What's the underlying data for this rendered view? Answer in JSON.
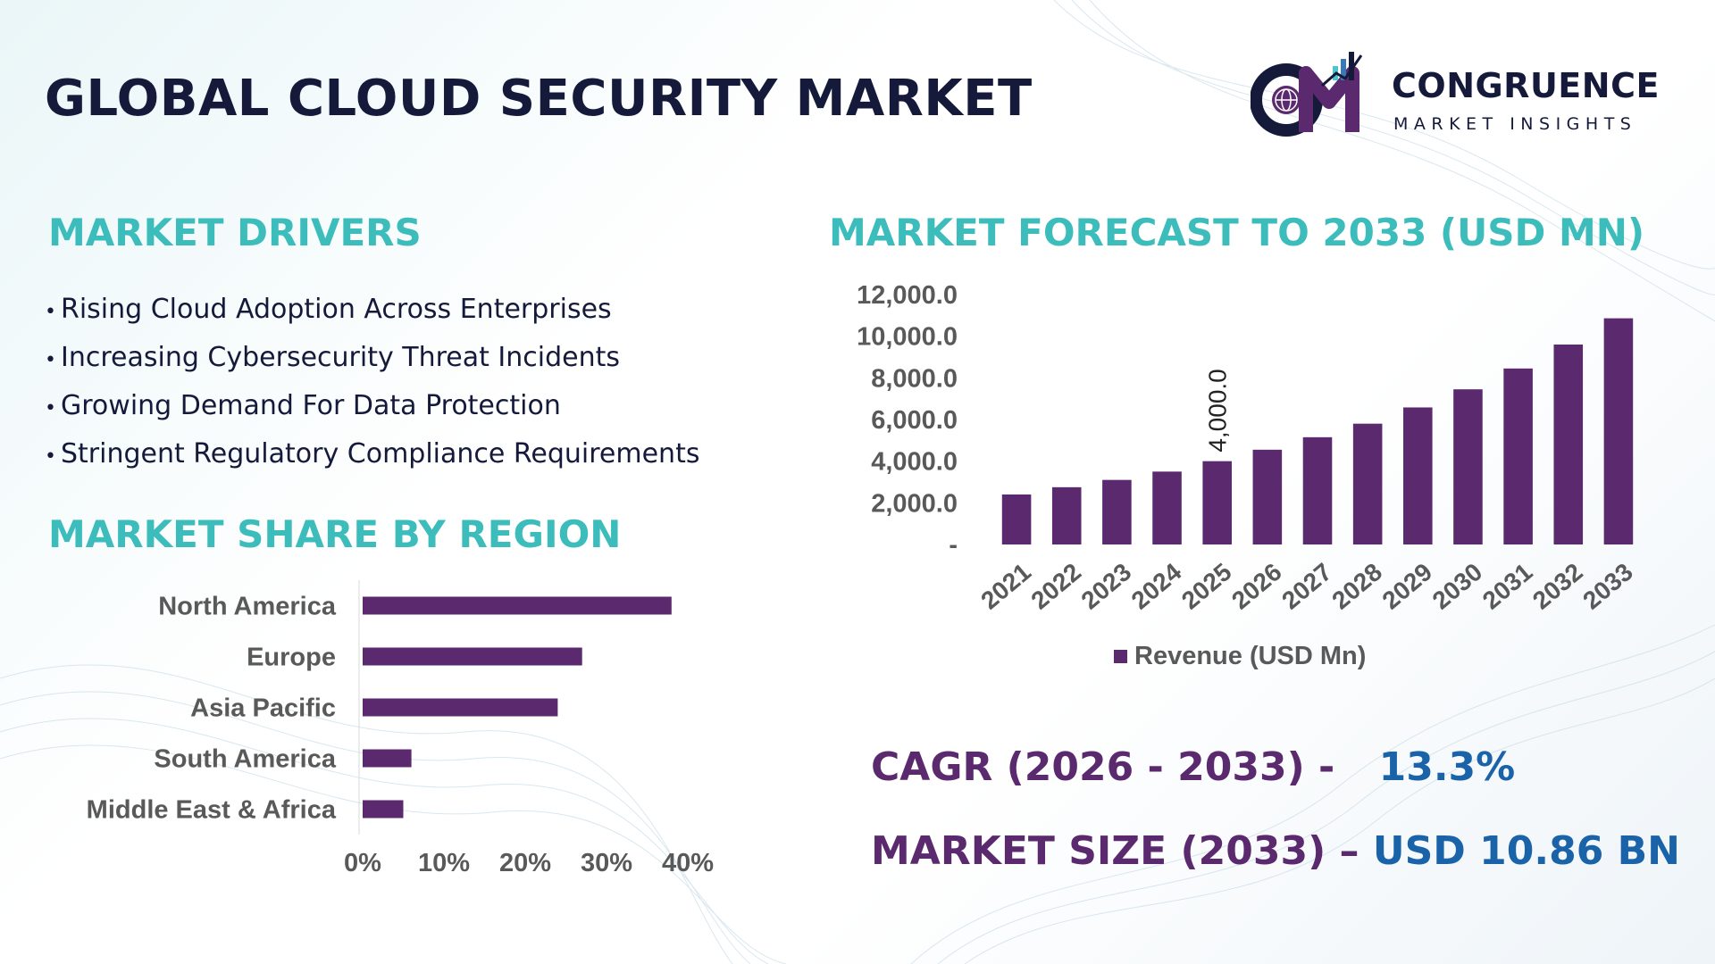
{
  "title": "GLOBAL CLOUD SECURITY MARKET",
  "logo": {
    "name": "CONGRUENCE",
    "tagline": "MARKET INSIGHTS",
    "icon": "cmi-logo-icon",
    "colors": {
      "navy": "#151a3b",
      "purple": "#5b2a6e",
      "cyan": "#4fc3d0"
    }
  },
  "drivers": {
    "heading": "MARKET DRIVERS",
    "bullet": "•",
    "items": [
      "Rising Cloud Adoption Across Enterprises",
      "Increasing Cybersecurity Threat Incidents",
      "Growing Demand For Data Protection",
      "Stringent Regulatory Compliance Requirements"
    ]
  },
  "region": {
    "heading": "MARKET SHARE BY REGION"
  },
  "forecast": {
    "heading": "MARKET FORECAST TO 2033 (USD MN)"
  },
  "stats": {
    "cagr_label": "CAGR (2026 - 2033) -",
    "cagr_value": "13.3%",
    "size_label": "MARKET SIZE (2033) –",
    "size_value": "USD 10.86 BN"
  },
  "colors": {
    "heading": "#3cbdbb",
    "bar": "#5b2a6e",
    "stat_label": "#5b2a6e",
    "stat_value": "#1b63a8",
    "axis_text": "#595959"
  },
  "chart_data": [
    {
      "type": "bar",
      "orientation": "vertical",
      "categories": [
        "2021",
        "2022",
        "2023",
        "2024",
        "2025",
        "2026",
        "2027",
        "2028",
        "2029",
        "2030",
        "2031",
        "2032",
        "2033"
      ],
      "series": [
        {
          "name": "Revenue (USD Mn)",
          "values": [
            2400,
            2750,
            3100,
            3500,
            4000,
            4550,
            5150,
            5800,
            6580,
            7450,
            8450,
            9600,
            10860
          ]
        }
      ],
      "ylim": [
        0,
        12000
      ],
      "yticks": [
        0,
        2000,
        4000,
        6000,
        8000,
        10000,
        12000
      ],
      "ytick_labels": [
        "-",
        "2,000.0",
        "4,000.0",
        "6,000.0",
        "8,000.0",
        "10,000.0",
        "12,000.0"
      ],
      "data_labels": [
        {
          "category": "2025",
          "text": "4,000.0"
        }
      ],
      "legend": "bottom",
      "grid": false
    },
    {
      "type": "bar",
      "orientation": "horizontal",
      "categories": [
        "North America",
        "Europe",
        "Asia Pacific",
        "South America",
        "Middle East & Africa"
      ],
      "values": [
        38,
        27,
        24,
        6,
        5
      ],
      "xlim": [
        0,
        40
      ],
      "xticks": [
        0,
        10,
        20,
        30,
        40
      ],
      "xtick_labels": [
        "0%",
        "10%",
        "20%",
        "30%",
        "40%"
      ],
      "grid": false
    }
  ]
}
